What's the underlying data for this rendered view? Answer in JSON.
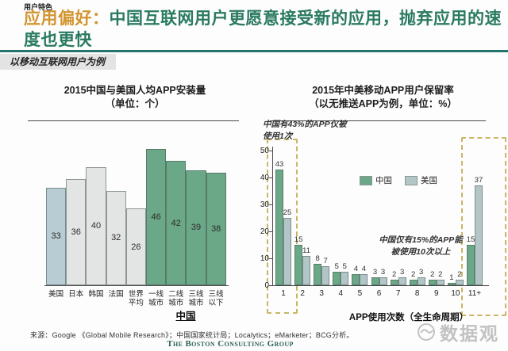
{
  "header": {
    "tag": "用户特色",
    "title_prefix": "应用偏好：",
    "title_main": "中国互联网用户更愿意接受新的应用，抛弃应用的速度也更快",
    "band_note": "以移动互联网用户为例",
    "colors": {
      "orange": "#d2952f",
      "green": "#2a7a61",
      "rule_teal": "#23746a"
    }
  },
  "chart_data": [
    {
      "type": "bar",
      "title": "2015中国与美国人均APP安装量",
      "subtitle": "（单位：个）",
      "categories": [
        "美国",
        "日本",
        "韩国",
        "法国",
        "世界平均",
        "一线城市",
        "二线城市",
        "三线城市",
        "三线以下"
      ],
      "values": [
        33,
        36,
        40,
        32,
        26,
        46,
        42,
        39,
        38
      ],
      "bar_colors": [
        "#b7cdd3",
        "#e3e5e4",
        "#e3e5e4",
        "#e3e5e4",
        "#e3e5e4",
        "#6ba887",
        "#6ba887",
        "#6ba887",
        "#6ba887"
      ],
      "group_label": "中国",
      "ylim": [
        0,
        50
      ],
      "value_labels": "inside-center",
      "grid": false
    },
    {
      "type": "bar",
      "title": "2015年中美移动APP用户保留率",
      "subtitle": "（以无推送APP为例，单位：%）",
      "categories": [
        "1",
        "2",
        "3",
        "4",
        "5",
        "6",
        "7",
        "8",
        "9",
        "10",
        "11+"
      ],
      "series": [
        {
          "name": "中国",
          "color": "#6ba887",
          "values": [
            43,
            15,
            8,
            5,
            4,
            3,
            2,
            2,
            2,
            1,
            15
          ]
        },
        {
          "name": "美国",
          "color": "#b2c5c7",
          "values": [
            25,
            11,
            7,
            5,
            4,
            3,
            3,
            3,
            2,
            2,
            37
          ]
        }
      ],
      "yticks": [
        0,
        10,
        20,
        30,
        40,
        50
      ],
      "ylim": [
        0,
        50
      ],
      "xlabel": "APP使用次数（全生命周期）",
      "annotations": [
        {
          "lines": [
            "中国有43%的APP仅被",
            "使用1次"
          ],
          "target": "1"
        },
        {
          "lines": [
            "中国仅有15%的APP能",
            "被使用10次以上"
          ],
          "target": "11+"
        }
      ],
      "highlight_boxes": [
        "1",
        "11+"
      ],
      "highlight_color": "#c9b565",
      "legend_position": "center",
      "grid": false
    }
  ],
  "footer": {
    "source": "来源：Google 《Global Mobile Research》；中国国家统计局；Localytics；eMarketer；BCG分析。",
    "bcg_logo": "The Boston Consulting Group",
    "watermark": "数据观"
  }
}
